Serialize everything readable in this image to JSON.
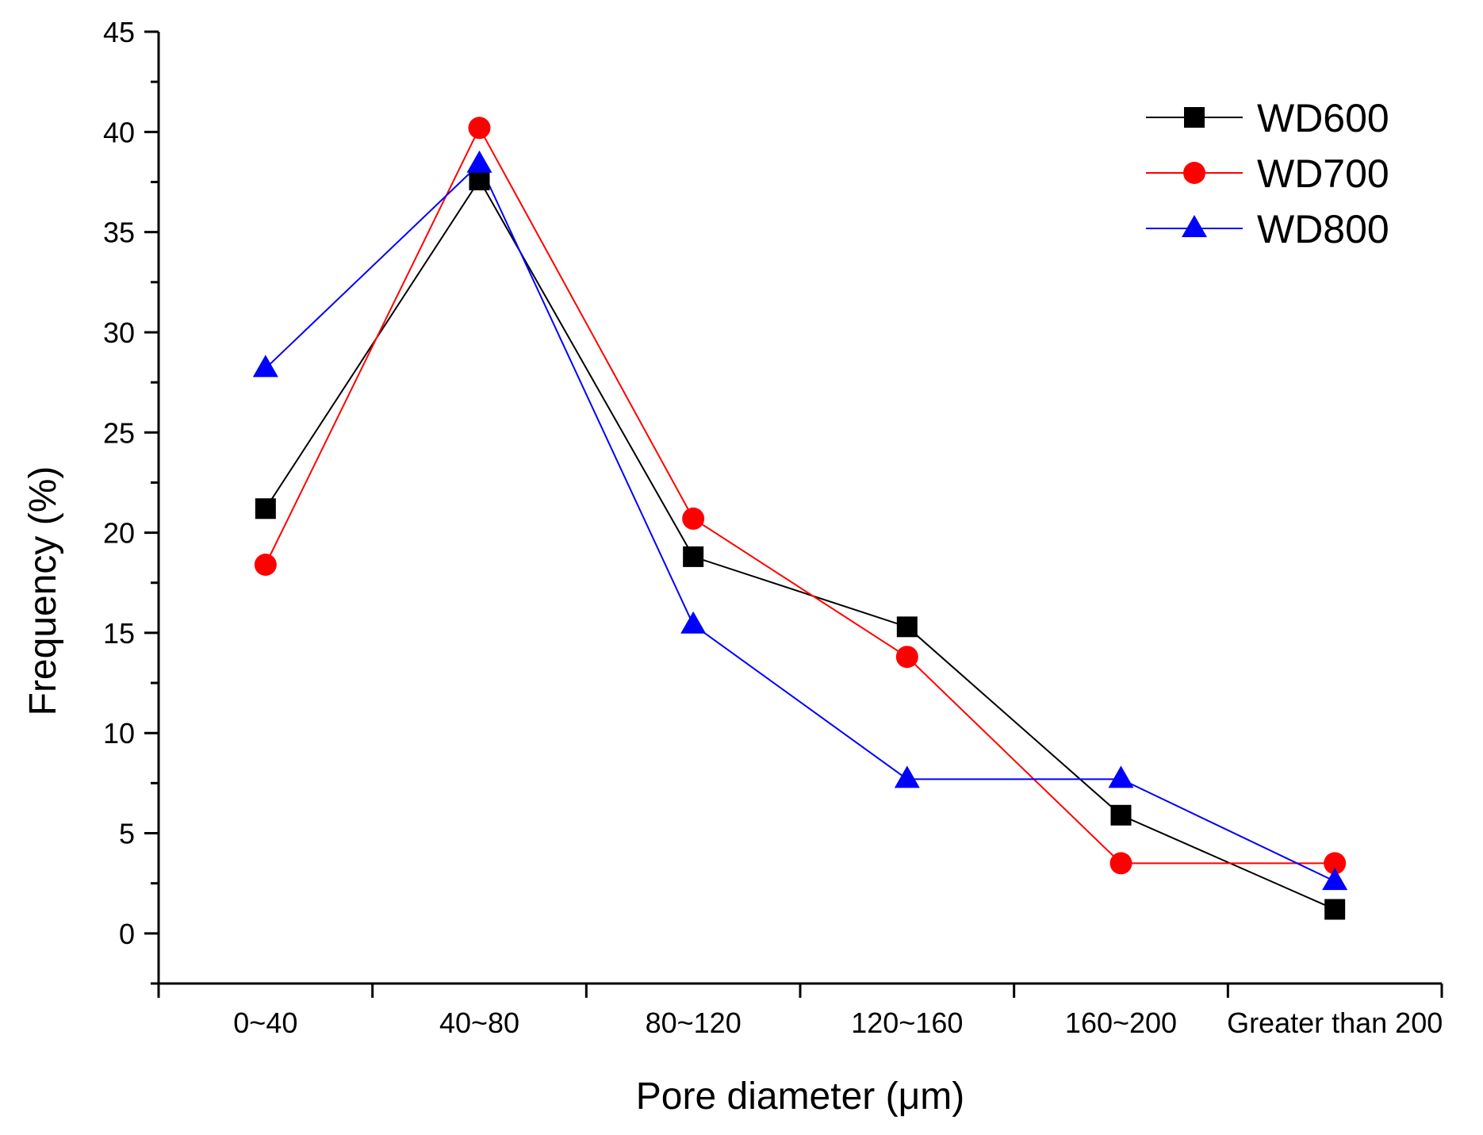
{
  "chart_data": {
    "type": "line",
    "title": "",
    "xlabel": "Pore diameter (μm)",
    "ylabel": "Frequency (%)",
    "categories": [
      "0~40",
      "40~80",
      "80~120",
      "120~160",
      "160~200",
      "Greater than 200"
    ],
    "ylim": [
      -2.5,
      45
    ],
    "yticks": [
      0,
      5,
      10,
      15,
      20,
      25,
      30,
      35,
      40,
      45
    ],
    "grid": false,
    "legend_position": "top-right",
    "series": [
      {
        "name": "WD600",
        "color": "#000000",
        "marker": "square",
        "values": [
          21.2,
          37.6,
          18.8,
          15.3,
          5.9,
          1.2
        ]
      },
      {
        "name": "WD700",
        "color": "#ff0000",
        "marker": "circle",
        "values": [
          18.4,
          40.2,
          20.7,
          13.8,
          3.5,
          3.5
        ]
      },
      {
        "name": "WD800",
        "color": "#0000ff",
        "marker": "triangle",
        "values": [
          28.2,
          38.4,
          15.4,
          7.7,
          7.7,
          2.6
        ]
      }
    ]
  }
}
